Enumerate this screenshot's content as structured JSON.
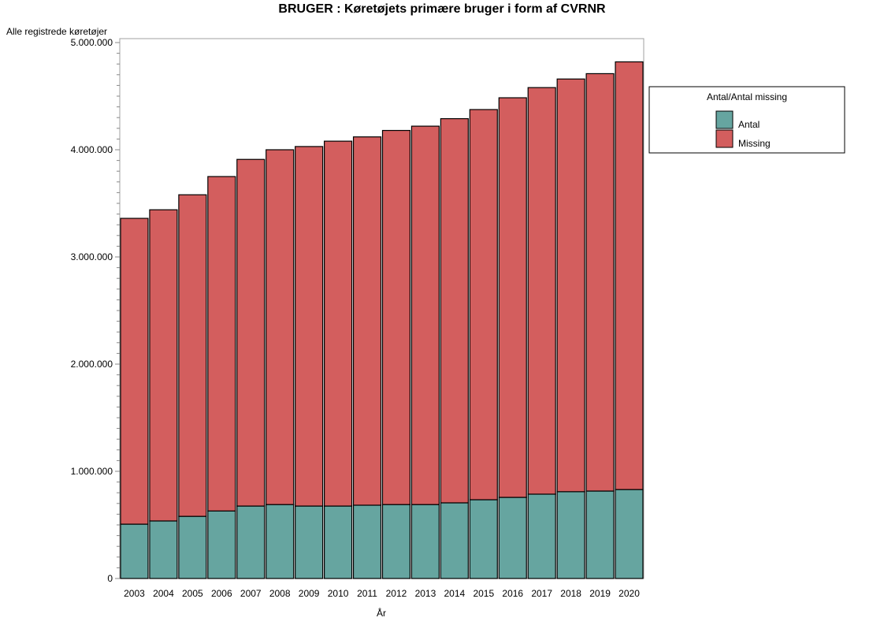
{
  "chart_data": {
    "type": "bar",
    "stacked": true,
    "title": "BRUGER : Køretøjets primære bruger i form af CVRNR",
    "ylabel": "Alle registrede køretøjer",
    "xlabel": "År",
    "ylim": [
      0,
      5000000
    ],
    "yticks": [
      0,
      1000000,
      2000000,
      3000000,
      4000000,
      5000000
    ],
    "ytick_labels": [
      "0",
      "1.000.000",
      "2.000.000",
      "3.000.000",
      "4.000.000",
      "5.000.000"
    ],
    "categories": [
      "2003",
      "2004",
      "2005",
      "2006",
      "2007",
      "2008",
      "2009",
      "2010",
      "2011",
      "2012",
      "2013",
      "2014",
      "2015",
      "2016",
      "2017",
      "2018",
      "2019",
      "2020"
    ],
    "series": [
      {
        "name": "Antal",
        "color": "#66a5a0",
        "values": [
          507000,
          537000,
          580000,
          630000,
          676000,
          690000,
          676000,
          676000,
          684000,
          690000,
          690000,
          706000,
          735000,
          757000,
          787000,
          810000,
          816000,
          830000
        ]
      },
      {
        "name": "Missing",
        "color": "#d35e5e",
        "values": [
          2853000,
          2903000,
          3000000,
          3120000,
          3234000,
          3310000,
          3354000,
          3404000,
          3436000,
          3490000,
          3530000,
          3584000,
          3640000,
          3728000,
          3793000,
          3850000,
          3894000,
          3990000
        ]
      }
    ],
    "legend": {
      "title": "Antal/Antal missing",
      "placement": "right"
    },
    "grid": false
  }
}
